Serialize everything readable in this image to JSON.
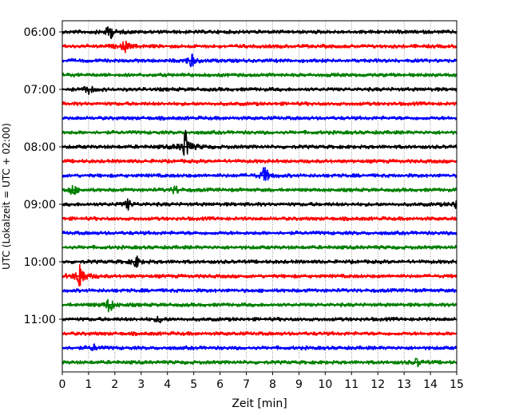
{
  "chart_data": {
    "type": "line",
    "title": "",
    "xlabel": "Zeit  [min]",
    "ylabel": "UTC (Lokalzeit = UTC + 02:00)",
    "xlim": [
      0,
      15
    ],
    "x_ticks": [
      "0",
      "1",
      "2",
      "3",
      "4",
      "5",
      "6",
      "7",
      "8",
      "9",
      "10",
      "11",
      "12",
      "13",
      "14",
      "15"
    ],
    "y_tick_labels": [
      "06:00",
      "07:00",
      "08:00",
      "09:00",
      "10:00",
      "11:00"
    ],
    "grid": "vertical dotted",
    "trace_start_hour": 6,
    "trace_interval_minutes": 15,
    "trace_count": 24,
    "colors": [
      "#000000",
      "#ff0000",
      "#0000ff",
      "#008000"
    ],
    "events": [
      {
        "trace": 0,
        "minute": 1.8,
        "amplitude": 0.4
      },
      {
        "trace": 1,
        "minute": 2.4,
        "amplitude": 0.3
      },
      {
        "trace": 2,
        "minute": 4.9,
        "amplitude": 0.35
      },
      {
        "trace": 4,
        "minute": 1.0,
        "amplitude": 0.25
      },
      {
        "trace": 8,
        "minute": 4.7,
        "amplitude": 0.9
      },
      {
        "trace": 10,
        "minute": 7.7,
        "amplitude": 0.45
      },
      {
        "trace": 11,
        "minute": 0.4,
        "amplitude": 0.3
      },
      {
        "trace": 11,
        "minute": 4.3,
        "amplitude": 0.2
      },
      {
        "trace": 12,
        "minute": 2.5,
        "amplitude": 0.25
      },
      {
        "trace": 12,
        "minute": 15.0,
        "amplitude": 0.25
      },
      {
        "trace": 16,
        "minute": 2.8,
        "amplitude": 0.3
      },
      {
        "trace": 17,
        "minute": 0.7,
        "amplitude": 0.85
      },
      {
        "trace": 19,
        "minute": 1.8,
        "amplitude": 0.4
      },
      {
        "trace": 20,
        "minute": 3.7,
        "amplitude": 0.15
      },
      {
        "trace": 22,
        "minute": 1.2,
        "amplitude": 0.15
      },
      {
        "trace": 23,
        "minute": 13.5,
        "amplitude": 0.2
      }
    ]
  }
}
